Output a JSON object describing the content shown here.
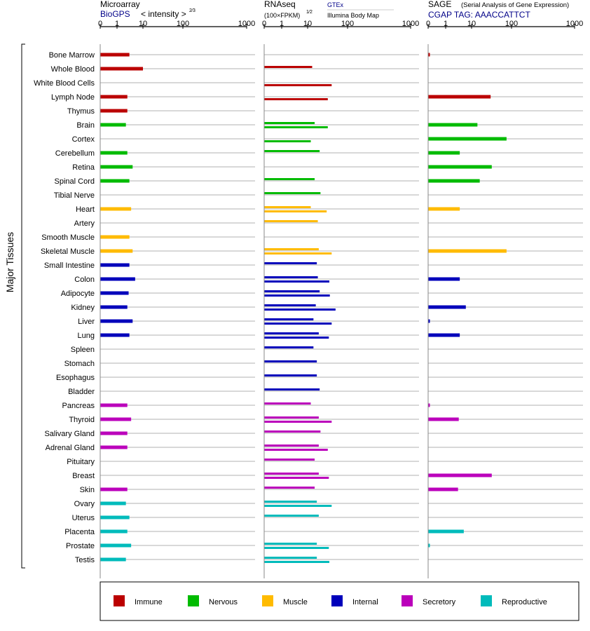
{
  "panels": {
    "microarray": {
      "title": "Microarray",
      "source": "BioGPS",
      "scale_label": "< intensity >",
      "scale_exp": "2⁄3",
      "ticks": [
        "0",
        "1",
        "10",
        "100",
        "1000"
      ]
    },
    "rnaseq": {
      "title": "RNAseq",
      "scale_label": "(100×FPKM)",
      "scale_exp": "1⁄2",
      "source_top": "GTEx",
      "source_bottom": "Illumina Body Map",
      "ticks": [
        "0",
        "1",
        "10",
        "100",
        "1000"
      ]
    },
    "sage": {
      "title": "SAGE",
      "subtitle": "(Serial Analysis of Gene Expression)",
      "tag_label": "CGAP TAG: AAACCATTCT",
      "ticks": [
        "0",
        "1",
        "10",
        "100",
        "1000"
      ]
    }
  },
  "y_axis_label": "Major Tissues",
  "legend": [
    {
      "label": "Immune",
      "color": "#bb0000"
    },
    {
      "label": "Nervous",
      "color": "#00bb00"
    },
    {
      "label": "Muscle",
      "color": "#ffbb00"
    },
    {
      "label": "Internal",
      "color": "#0000bb"
    },
    {
      "label": "Secretory",
      "color": "#bb00bb"
    },
    {
      "label": "Reproductive",
      "color": "#00bbbb"
    }
  ],
  "chart_data": {
    "type": "bar",
    "orientation": "horizontal",
    "x_scale": "transformed",
    "xlim": [
      0,
      1000
    ],
    "tick_values": [
      0,
      1,
      10,
      100,
      1000
    ],
    "rows": [
      {
        "tissue": "Bone Marrow",
        "group": "Immune",
        "microarray": 3,
        "gtex": null,
        "ibm": null,
        "sage": 0.1
      },
      {
        "tissue": "Whole Blood",
        "group": "Immune",
        "microarray": 10,
        "gtex": 13,
        "ibm": null,
        "sage": null
      },
      {
        "tissue": "White Blood Cells",
        "group": "Immune",
        "microarray": null,
        "gtex": null,
        "ibm": 40,
        "sage": null
      },
      {
        "tissue": "Lymph Node",
        "group": "Immune",
        "microarray": 2.5,
        "gtex": null,
        "ibm": 32,
        "sage": 30
      },
      {
        "tissue": "Thymus",
        "group": "Immune",
        "microarray": 2.5,
        "gtex": null,
        "ibm": null,
        "sage": null
      },
      {
        "tissue": "Brain",
        "group": "Nervous",
        "microarray": 2.2,
        "gtex": 15,
        "ibm": 32,
        "sage": 14
      },
      {
        "tissue": "Cortex",
        "group": "Nervous",
        "microarray": null,
        "gtex": null,
        "ibm": 12,
        "sage": 75
      },
      {
        "tissue": "Cerebellum",
        "group": "Nervous",
        "microarray": 2.5,
        "gtex": 20,
        "ibm": null,
        "sage": 3.5
      },
      {
        "tissue": "Retina",
        "group": "Nervous",
        "microarray": 4,
        "gtex": null,
        "ibm": null,
        "sage": 32
      },
      {
        "tissue": "Spinal Cord",
        "group": "Nervous",
        "microarray": 3,
        "gtex": 15,
        "ibm": null,
        "sage": 16
      },
      {
        "tissue": "Tibial Nerve",
        "group": "Nervous",
        "microarray": null,
        "gtex": 21,
        "ibm": null,
        "sage": null
      },
      {
        "tissue": "Heart",
        "group": "Muscle",
        "microarray": 3.5,
        "gtex": 12,
        "ibm": 30,
        "sage": 3.5
      },
      {
        "tissue": "Artery",
        "group": "Muscle",
        "microarray": null,
        "gtex": 18,
        "ibm": null,
        "sage": null
      },
      {
        "tissue": "Smooth Muscle",
        "group": "Muscle",
        "microarray": 3,
        "gtex": null,
        "ibm": null,
        "sage": null
      },
      {
        "tissue": "Skeletal Muscle",
        "group": "Muscle",
        "microarray": 4,
        "gtex": 19,
        "ibm": 40,
        "sage": 75
      },
      {
        "tissue": "Small Intestine",
        "group": "Internal",
        "microarray": 3,
        "gtex": 17,
        "ibm": null,
        "sage": null
      },
      {
        "tissue": "Colon",
        "group": "Internal",
        "microarray": 5,
        "gtex": 18,
        "ibm": 35,
        "sage": 3.5
      },
      {
        "tissue": "Adipocyte",
        "group": "Internal",
        "microarray": 2.8,
        "gtex": 20,
        "ibm": 36,
        "sage": null
      },
      {
        "tissue": "Kidney",
        "group": "Internal",
        "microarray": 2.5,
        "gtex": 16,
        "ibm": 50,
        "sage": 6
      },
      {
        "tissue": "Liver",
        "group": "Internal",
        "microarray": 4,
        "gtex": 14,
        "ibm": 40,
        "sage": 0.1
      },
      {
        "tissue": "Lung",
        "group": "Internal",
        "microarray": 3,
        "gtex": 19,
        "ibm": 34,
        "sage": 3.5
      },
      {
        "tissue": "Spleen",
        "group": "Internal",
        "microarray": null,
        "gtex": 14,
        "ibm": null,
        "sage": null
      },
      {
        "tissue": "Stomach",
        "group": "Internal",
        "microarray": null,
        "gtex": 17,
        "ibm": null,
        "sage": null
      },
      {
        "tissue": "Esophagus",
        "group": "Internal",
        "microarray": null,
        "gtex": 17,
        "ibm": null,
        "sage": null
      },
      {
        "tissue": "Bladder",
        "group": "Internal",
        "microarray": null,
        "gtex": 20,
        "ibm": null,
        "sage": null
      },
      {
        "tissue": "Pancreas",
        "group": "Secretory",
        "microarray": 2.5,
        "gtex": 12,
        "ibm": null,
        "sage": 0.1
      },
      {
        "tissue": "Thyroid",
        "group": "Secretory",
        "microarray": 3.5,
        "gtex": 19,
        "ibm": 40,
        "sage": 3.2
      },
      {
        "tissue": "Salivary Gland",
        "group": "Secretory",
        "microarray": 2.5,
        "gtex": 21,
        "ibm": null,
        "sage": null
      },
      {
        "tissue": "Adrenal Gland",
        "group": "Secretory",
        "microarray": 2.5,
        "gtex": 19,
        "ibm": 32,
        "sage": null
      },
      {
        "tissue": "Pituitary",
        "group": "Secretory",
        "microarray": null,
        "gtex": 15,
        "ibm": null,
        "sage": null
      },
      {
        "tissue": "Breast",
        "group": "Secretory",
        "microarray": null,
        "gtex": 19,
        "ibm": 34,
        "sage": 32
      },
      {
        "tissue": "Skin",
        "group": "Secretory",
        "microarray": 2.5,
        "gtex": 15,
        "ibm": null,
        "sage": 3
      },
      {
        "tissue": "Ovary",
        "group": "Reproductive",
        "microarray": 2.2,
        "gtex": 17,
        "ibm": 40,
        "sage": null
      },
      {
        "tissue": "Uterus",
        "group": "Reproductive",
        "microarray": 3,
        "gtex": 19,
        "ibm": null,
        "sage": null
      },
      {
        "tissue": "Placenta",
        "group": "Reproductive",
        "microarray": 2.5,
        "gtex": null,
        "ibm": null,
        "sage": 5
      },
      {
        "tissue": "Prostate",
        "group": "Reproductive",
        "microarray": 3.5,
        "gtex": 17,
        "ibm": 34,
        "sage": 0.1
      },
      {
        "tissue": "Testis",
        "group": "Reproductive",
        "microarray": 2.2,
        "gtex": 17,
        "ibm": 35,
        "sage": null
      }
    ]
  }
}
